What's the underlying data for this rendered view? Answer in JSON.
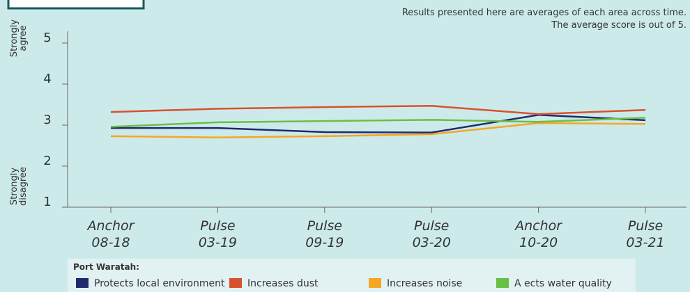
{
  "chart_data": {
    "type": "line",
    "notes": [
      "Results presented here are averages of each area across time.",
      "The average score is out of 5."
    ],
    "y_top_label": "Strongly agree",
    "y_bottom_label": "Strongly disagree",
    "categories": [
      "Anchor 08-18",
      "Pulse 03-19",
      "Pulse 09-19",
      "Pulse 03-20",
      "Anchor 10-20",
      "Pulse 03-21"
    ],
    "ylim": [
      1,
      5
    ],
    "yticks": [
      1,
      2,
      3,
      4,
      5
    ],
    "legend_title": "Port Waratah:",
    "series": [
      {
        "name": "Protects local environment",
        "color": "#1f2a6b",
        "values": [
          2.93,
          2.93,
          2.83,
          2.82,
          3.25,
          3.12
        ]
      },
      {
        "name": "Increases dust",
        "color": "#d9512c",
        "values": [
          3.32,
          3.4,
          3.44,
          3.47,
          3.27,
          3.37
        ]
      },
      {
        "name": "Increases noise",
        "color": "#f5a623",
        "values": [
          2.73,
          2.7,
          2.73,
          2.78,
          3.05,
          3.03
        ]
      },
      {
        "name": "A ects water quality",
        "color": "#6abf45",
        "values": [
          2.96,
          3.07,
          3.1,
          3.13,
          3.08,
          3.18
        ]
      }
    ]
  }
}
